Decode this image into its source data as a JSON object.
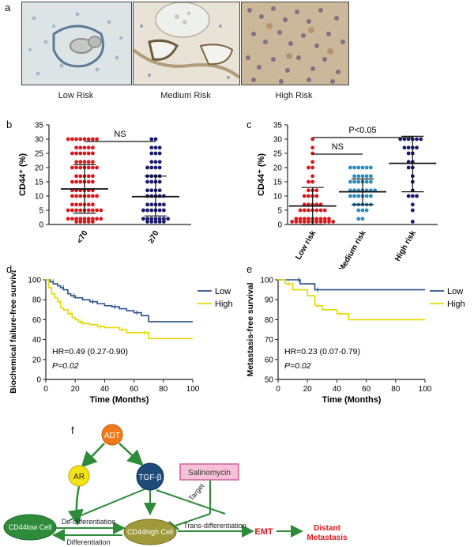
{
  "panels": {
    "a": {
      "letter": "a",
      "images": [
        {
          "label": "Low Risk"
        },
        {
          "label": "Medium Risk"
        },
        {
          "label": "High Risk"
        }
      ]
    },
    "b": {
      "letter": "b",
      "ylabel": "CD44⁺ (%)",
      "sig": "NS",
      "yticks": [
        "0",
        "5",
        "10",
        "15",
        "20",
        "25",
        "30",
        "35"
      ]
    },
    "c": {
      "letter": "c",
      "ylabel": "CD44⁺ (%)",
      "sig_top": "P<0.05",
      "sig_mid": "NS"
    },
    "d": {
      "letter": "d",
      "ylabel": "Biochemical failure-free survival",
      "xlabel": "Time (Months)",
      "legend_low": "Low",
      "legend_high": "High",
      "hr": "HR=0.49 (0.27-0.90)",
      "p": "P=0.02",
      "yticks": [
        "0",
        "20",
        "40",
        "60",
        "80",
        "100"
      ],
      "xticks": [
        "0",
        "20",
        "40",
        "60",
        "80",
        "100"
      ]
    },
    "e": {
      "letter": "e",
      "ylabel": "Metastasis-free survival",
      "xlabel": "Time (Months)",
      "legend_low": "Low",
      "legend_high": "High",
      "hr": "HR=0.23 (0.07-0.79)",
      "p": "P=0.02",
      "yticks": [
        "50",
        "60",
        "70",
        "80",
        "90",
        "100"
      ],
      "xticks": [
        "0",
        "20",
        "40",
        "60",
        "80",
        "100"
      ]
    },
    "f": {
      "letter": "f",
      "nodes": {
        "adt": "ADT",
        "ar": "AR",
        "tgfb": "TGF-β",
        "salinomycin": "Salinomycin",
        "cd44low": "CD44low Cell",
        "cd44high": "CD44high Cell",
        "emt": "EMT",
        "distant": "Distant",
        "metastasis": "Metastasis"
      },
      "edges": {
        "dediff": "De-differentiation",
        "diff": "Differentiation",
        "trans": "Trans-differentiation",
        "target": "Target"
      }
    }
  },
  "chart_data": [
    {
      "type": "scatter",
      "panel": "b",
      "categories": [
        "<70",
        "≥70"
      ],
      "ylabel": "CD44+ (%)",
      "ylim": [
        0,
        35
      ],
      "annotation": "NS",
      "groups": [
        {
          "name": "<70",
          "color": "#d7191c",
          "mean": 12.5,
          "sd_upper": 21,
          "sd_lower": 4,
          "values": [
            30,
            30,
            30,
            30,
            30,
            30,
            30,
            30,
            27,
            27,
            27,
            27,
            27,
            25,
            25,
            25,
            25,
            25,
            25,
            22,
            22,
            22,
            22,
            22,
            20,
            20,
            20,
            20,
            20,
            20,
            20,
            17,
            17,
            17,
            17,
            17,
            15,
            15,
            15,
            15,
            15,
            15,
            12,
            12,
            12,
            12,
            12,
            12,
            10,
            10,
            10,
            10,
            10,
            10,
            10,
            7,
            7,
            7,
            7,
            7,
            7,
            5,
            5,
            5,
            5,
            5,
            5,
            5,
            5,
            5,
            2,
            2,
            2,
            2,
            2,
            2,
            2,
            2,
            2,
            1,
            1,
            1,
            1,
            1
          ]
        },
        {
          "name": "≥70",
          "color": "#1a1a6e",
          "mean": 9.8,
          "sd_upper": 17,
          "sd_lower": 3,
          "values": [
            30,
            30,
            27,
            27,
            27,
            25,
            25,
            25,
            22,
            22,
            22,
            20,
            20,
            20,
            20,
            17,
            17,
            17,
            17,
            15,
            15,
            15,
            15,
            12,
            12,
            12,
            12,
            10,
            10,
            10,
            10,
            10,
            7,
            7,
            7,
            7,
            7,
            5,
            5,
            5,
            5,
            5,
            5,
            2,
            2,
            2,
            2,
            2,
            2,
            2,
            1,
            1,
            1,
            1,
            1
          ]
        }
      ]
    },
    {
      "type": "scatter",
      "panel": "c",
      "categories": [
        "Low risk",
        "Medium risk",
        "High risk"
      ],
      "ylabel": "CD44+ (%)",
      "ylim": [
        0,
        35
      ],
      "annotations": [
        "P<0.05",
        "NS"
      ],
      "groups": [
        {
          "name": "Low risk",
          "color": "#d7191c",
          "mean": 6.5,
          "sd_upper": 13,
          "sd_lower": 0,
          "values": [
            30,
            27,
            25,
            22,
            20,
            20,
            17,
            15,
            15,
            12,
            12,
            12,
            10,
            10,
            10,
            10,
            7,
            7,
            7,
            7,
            7,
            5,
            5,
            5,
            5,
            5,
            5,
            5,
            2,
            2,
            2,
            2,
            2,
            2,
            2,
            2,
            2,
            1,
            1,
            1,
            1,
            1,
            1,
            1,
            1,
            1,
            1,
            1
          ]
        },
        {
          "name": "Medium risk",
          "color": "#2b8cbe",
          "mean": 11.5,
          "sd_upper": 16,
          "sd_lower": 7,
          "values": [
            20,
            20,
            20,
            20,
            20,
            20,
            17,
            17,
            17,
            17,
            17,
            15,
            15,
            15,
            15,
            15,
            15,
            12,
            12,
            12,
            12,
            12,
            12,
            12,
            10,
            10,
            10,
            10,
            10,
            10,
            7,
            7,
            7,
            7,
            7,
            5,
            5,
            5,
            2,
            2
          ]
        },
        {
          "name": "High risk",
          "color": "#1a1a6e",
          "mean": 21.5,
          "sd_upper": 31,
          "sd_lower": 11.5,
          "values": [
            30,
            30,
            30,
            30,
            30,
            30,
            27,
            27,
            27,
            27,
            25,
            25,
            22,
            22,
            20,
            20,
            17,
            15,
            12,
            10,
            10,
            10,
            7,
            5,
            1
          ]
        }
      ]
    },
    {
      "type": "line",
      "panel": "d",
      "title": "",
      "xlabel": "Time (Months)",
      "ylabel": "Biochemical failure-free survival",
      "xlim": [
        0,
        100
      ],
      "ylim": [
        0,
        100
      ],
      "series": [
        {
          "name": "Low",
          "color": "#2b4f8c",
          "steps": [
            [
              0,
              100
            ],
            [
              3,
              98
            ],
            [
              5,
              96
            ],
            [
              8,
              94
            ],
            [
              10,
              92
            ],
            [
              12,
              90
            ],
            [
              15,
              86
            ],
            [
              17,
              84
            ],
            [
              20,
              82
            ],
            [
              25,
              80
            ],
            [
              30,
              78
            ],
            [
              35,
              76
            ],
            [
              40,
              74
            ],
            [
              45,
              73
            ],
            [
              50,
              71
            ],
            [
              55,
              69
            ],
            [
              60,
              67
            ],
            [
              65,
              64
            ],
            [
              70,
              58
            ],
            [
              100,
              58
            ]
          ]
        },
        {
          "name": "High",
          "color": "#e6d800",
          "steps": [
            [
              0,
              100
            ],
            [
              2,
              92
            ],
            [
              4,
              86
            ],
            [
              6,
              82
            ],
            [
              8,
              78
            ],
            [
              10,
              72
            ],
            [
              12,
              70
            ],
            [
              15,
              66
            ],
            [
              18,
              62
            ],
            [
              20,
              60
            ],
            [
              22,
              58
            ],
            [
              25,
              56
            ],
            [
              30,
              55
            ],
            [
              35,
              53
            ],
            [
              40,
              52
            ],
            [
              45,
              52
            ],
            [
              50,
              50
            ],
            [
              55,
              47
            ],
            [
              60,
              47
            ],
            [
              65,
              47
            ],
            [
              70,
              41
            ],
            [
              100,
              41
            ]
          ]
        }
      ],
      "annotations": [
        "HR=0.49 (0.27-0.90)",
        "P=0.02"
      ]
    },
    {
      "type": "line",
      "panel": "e",
      "xlabel": "Time (Months)",
      "ylabel": "Metastasis-free survival",
      "xlim": [
        0,
        100
      ],
      "ylim": [
        50,
        100
      ],
      "series": [
        {
          "name": "Low",
          "color": "#2b4f8c",
          "steps": [
            [
              0,
              100
            ],
            [
              12,
              100
            ],
            [
              15,
              98
            ],
            [
              20,
              98
            ],
            [
              25,
              95
            ],
            [
              100,
              95
            ]
          ]
        },
        {
          "name": "High",
          "color": "#e6d800",
          "steps": [
            [
              0,
              100
            ],
            [
              5,
              98
            ],
            [
              10,
              95
            ],
            [
              20,
              92
            ],
            [
              25,
              87
            ],
            [
              30,
              85
            ],
            [
              35,
              85
            ],
            [
              40,
              83
            ],
            [
              48,
              80
            ],
            [
              100,
              80
            ]
          ]
        }
      ],
      "annotations": [
        "HR=0.23 (0.07-0.79)",
        "P=0.02"
      ]
    }
  ]
}
